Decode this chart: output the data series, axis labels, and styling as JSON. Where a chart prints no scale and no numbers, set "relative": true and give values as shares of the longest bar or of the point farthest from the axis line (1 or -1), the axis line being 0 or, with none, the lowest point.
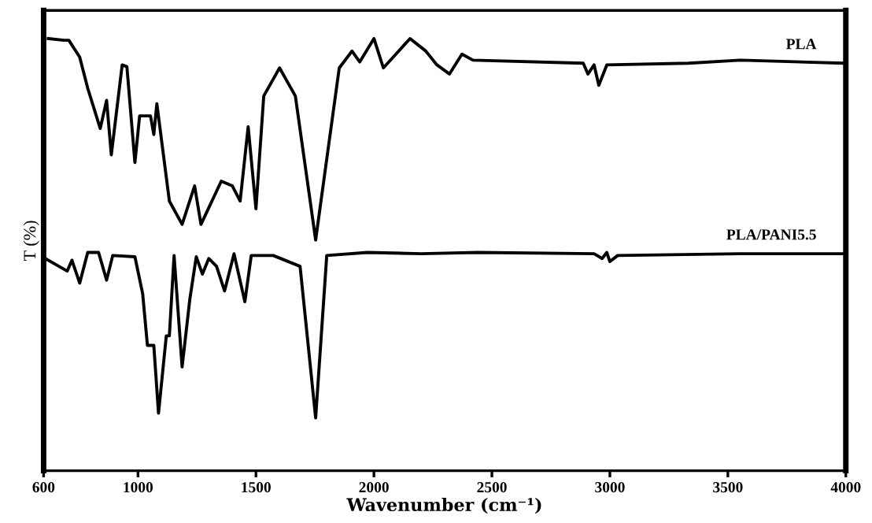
{
  "chart_data": {
    "type": "line",
    "relative": true,
    "xlabel": "Wavenumber (cm⁻¹)",
    "ylabel": "T (%)",
    "xlim": [
      600,
      4000
    ],
    "xticks": [
      600,
      1000,
      1500,
      2000,
      2500,
      3000,
      3500,
      4000
    ],
    "legend": false,
    "grid": false,
    "marker": "none",
    "line_style": "solid",
    "series": [
      {
        "name": "PLA",
        "color": "#000000",
        "x": [
          620,
          687,
          707,
          753,
          787,
          840,
          867,
          887,
          933,
          953,
          987,
          1007,
          1053,
          1067,
          1080,
          1133,
          1187,
          1240,
          1267,
          1353,
          1400,
          1433,
          1467,
          1500,
          1533,
          1600,
          1667,
          1753,
          1853,
          1907,
          1940,
          2000,
          2040,
          2153,
          2220,
          2267,
          2320,
          2373,
          2420,
          2887,
          2907,
          2933,
          2953,
          2987,
          3333,
          3553,
          3987
        ],
        "values": [
          1.0,
          0.996,
          0.996,
          0.957,
          0.885,
          0.792,
          0.857,
          0.731,
          0.939,
          0.935,
          0.713,
          0.821,
          0.821,
          0.778,
          0.849,
          0.624,
          0.57,
          0.659,
          0.57,
          0.67,
          0.659,
          0.624,
          0.796,
          0.606,
          0.867,
          0.932,
          0.867,
          0.534,
          0.932,
          0.971,
          0.946,
          1.0,
          0.932,
          1.0,
          0.971,
          0.939,
          0.918,
          0.964,
          0.95,
          0.943,
          0.918,
          0.939,
          0.892,
          0.939,
          0.943,
          0.95,
          0.943
        ]
      },
      {
        "name": "PLA/PANI5.5",
        "color": "#000000",
        "x": [
          607,
          700,
          720,
          753,
          787,
          833,
          867,
          893,
          987,
          1020,
          1040,
          1067,
          1087,
          1120,
          1133,
          1153,
          1187,
          1220,
          1247,
          1273,
          1300,
          1333,
          1367,
          1407,
          1453,
          1480,
          1573,
          1687,
          1753,
          1800,
          1973,
          2200,
          2440,
          2933,
          2967,
          2987,
          3000,
          3033,
          3553,
          3987
        ],
        "values": [
          0.491,
          0.462,
          0.487,
          0.434,
          0.505,
          0.505,
          0.441,
          0.498,
          0.495,
          0.409,
          0.29,
          0.29,
          0.133,
          0.312,
          0.312,
          0.498,
          0.24,
          0.398,
          0.495,
          0.455,
          0.491,
          0.473,
          0.416,
          0.502,
          0.391,
          0.498,
          0.498,
          0.473,
          0.122,
          0.498,
          0.505,
          0.502,
          0.505,
          0.502,
          0.491,
          0.505,
          0.484,
          0.498,
          0.502,
          0.502
        ]
      }
    ]
  }
}
